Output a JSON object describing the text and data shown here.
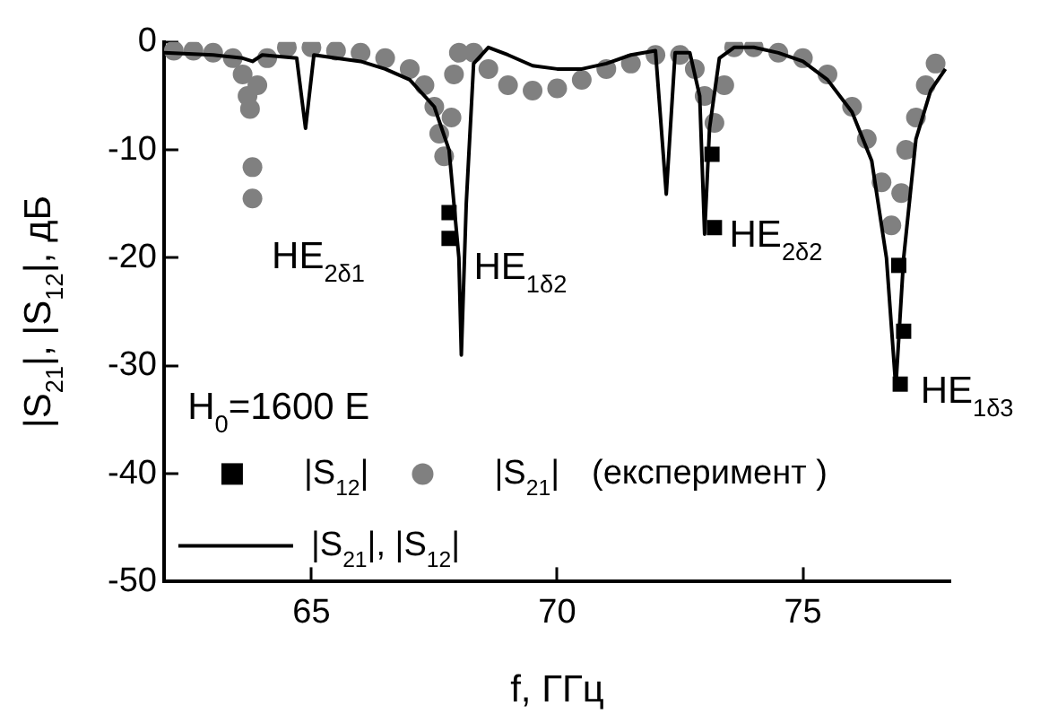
{
  "chart_data": {
    "type": "scatter",
    "xlabel": "f, ГГц",
    "ylabel": "|S$_{21}$|, |S$_{12}$|, дБ",
    "xlim": [
      62,
      78
    ],
    "xticks": [
      65,
      70,
      75
    ],
    "ylim": [
      -50,
      0
    ],
    "yticks": [
      0,
      -10,
      -20,
      -30,
      -40,
      -50
    ],
    "grid": false,
    "legend": "bottom left",
    "series": [
      {
        "name": "|S$_{12}$|",
        "marker": "square",
        "color": "#000000",
        "x": [
          67.8,
          67.8,
          73.15,
          73.2,
          76.95,
          77.05,
          76.98
        ],
        "values": [
          -15.8,
          -18.2,
          -10.4,
          -17.2,
          -20.7,
          -26.8,
          -31.7
        ]
      },
      {
        "name": "|S$_{21}$|",
        "marker": "circle",
        "color": "#808080",
        "x": [
          62.2,
          62.6,
          63,
          63.4,
          63.6,
          63.7,
          63.75,
          63.8,
          63.8,
          63.9,
          64.1,
          64.5,
          65,
          65.5,
          66,
          66.5,
          67,
          67.3,
          67.5,
          67.6,
          67.7,
          67.85,
          67.9,
          68,
          68.3,
          68.6,
          69,
          69.5,
          70,
          70.5,
          71,
          71.5,
          72,
          72.5,
          72.8,
          73,
          73.2,
          73.4,
          73.6,
          74,
          74.5,
          75,
          75.5,
          76,
          76.3,
          76.6,
          76.8,
          77,
          77.1,
          77.3,
          77.5,
          77.7
        ],
        "values": [
          -0.8,
          -0.8,
          -1,
          -1.5,
          -3,
          -5,
          -6.2,
          -11.6,
          -14.5,
          -4,
          -1.5,
          -0.5,
          -0.5,
          -0.8,
          -1,
          -1.5,
          -2.5,
          -4,
          -6,
          -8.5,
          -10.6,
          -7,
          -3,
          -1,
          -1,
          -2.5,
          -4,
          -4.5,
          -4.3,
          -3.5,
          -2.5,
          -2,
          -1.2,
          -1.2,
          -2.5,
          -5,
          -7.5,
          -4,
          -0.5,
          -0.5,
          -1,
          -1.5,
          -3,
          -6,
          -9,
          -13,
          -17,
          -14,
          -10,
          -7,
          -4,
          -2
        ]
      },
      {
        "name": "|S$_{21}$|, |S$_{12}$|",
        "type": "line",
        "marker": "none",
        "color": "#000000",
        "x": [
          62,
          63,
          63.6,
          63.8,
          64,
          64.7,
          64.88,
          65.05,
          65.5,
          66,
          66.5,
          67,
          67.5,
          67.8,
          68,
          68.05,
          68.15,
          68.3,
          68.6,
          69,
          69.5,
          70,
          70.5,
          71,
          71.5,
          72,
          72.22,
          72.4,
          72.7,
          72.9,
          73,
          73.1,
          73.3,
          73.6,
          74,
          74.5,
          75,
          75.5,
          76,
          76.4,
          76.7,
          76.89,
          77.05,
          77.3,
          77.6,
          77.9
        ],
        "values": [
          -1,
          -1.2,
          -1.5,
          -1.8,
          -1.2,
          -1.5,
          -8,
          -1.2,
          -1.5,
          -1.8,
          -2.5,
          -3.5,
          -6,
          -10,
          -20,
          -29,
          -15,
          -2,
          -0.5,
          -1.2,
          -2.2,
          -2.5,
          -2.5,
          -2,
          -1.2,
          -0.8,
          -14.1,
          -1,
          -1,
          -5,
          -17.8,
          -8,
          -1.5,
          -0.5,
          -0.5,
          -1,
          -1.8,
          -3.5,
          -6.5,
          -11,
          -20,
          -32,
          -20,
          -9,
          -4.5,
          -2.5
        ]
      }
    ],
    "annotations": [
      "HE$_{2δ1}$",
      "HE$_{1δ2}$",
      "HE$_{2δ2}$",
      "HE$_{1δ3}$",
      "H$_{0}$=1600 E",
      "(експеримент )"
    ]
  }
}
